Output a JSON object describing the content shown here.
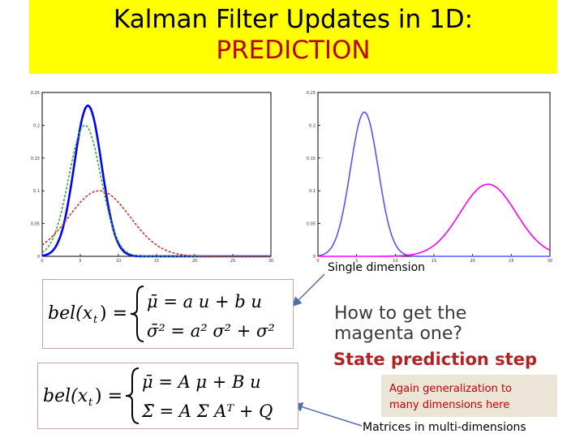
{
  "title": {
    "line1": "Kalman Filter Updates in 1D:",
    "line2": "PREDICTION"
  },
  "colors": {
    "title_band": "#ffff00",
    "title_accent": "#c00000",
    "state_step": "#b22222",
    "note_bg": "#ece4d6"
  },
  "chart_data": [
    {
      "type": "line",
      "xlim": [
        0,
        30
      ],
      "ylim": [
        0,
        0.25
      ],
      "x_ticks": [
        "0",
        "5",
        "10",
        "15",
        "20",
        "25",
        "30"
      ],
      "y_ticks": [
        "0",
        "0.05",
        "0.1",
        "0.15",
        "0.2",
        "0.25"
      ],
      "series": [
        {
          "color": "#0000ff",
          "mean": 6,
          "std": 1.8,
          "peak": 0.23
        },
        {
          "color": "#33aa33",
          "style": "dashed",
          "mean": 5.6,
          "std": 2.1,
          "peak": 0.2
        },
        {
          "color": "#cc3333",
          "style": "dashed",
          "mean": 7.5,
          "std": 4.0,
          "peak": 0.1
        }
      ]
    },
    {
      "type": "line",
      "xlim": [
        0,
        30
      ],
      "ylim": [
        0,
        0.25
      ],
      "x_ticks": [
        "0",
        "5",
        "10",
        "15",
        "20",
        "25",
        "30"
      ],
      "y_ticks": [
        "0",
        "0.05",
        "0.1",
        "0.15",
        "0.2",
        "0.25"
      ],
      "series": [
        {
          "color": "#5555ff",
          "mean": 6,
          "std": 1.8,
          "peak": 0.22
        },
        {
          "color": "#ff00ff",
          "mean": 22,
          "std": 3.6,
          "peak": 0.11
        }
      ]
    }
  ],
  "captions": {
    "single": "Single dimension",
    "matrices": "Matrices in multi-dimensions"
  },
  "equations": {
    "single": {
      "lhs": "bel(x",
      "lhs_sub": "t",
      "line1": "μ̄ = a u + b u",
      "line2": "σ̄² = a² σ² + σ²"
    },
    "multi": {
      "lhs": "bel(x",
      "lhs_sub": "t",
      "line1": "μ̄ = A μ + B u",
      "line2": "Σ̄ = A Σ Aᵀ + Q"
    }
  },
  "question": {
    "line1": "How to get the",
    "line2": "magenta one?"
  },
  "state_step": "State prediction step",
  "note": {
    "line1": "Again generalization to",
    "line2": "many dimensions here"
  }
}
